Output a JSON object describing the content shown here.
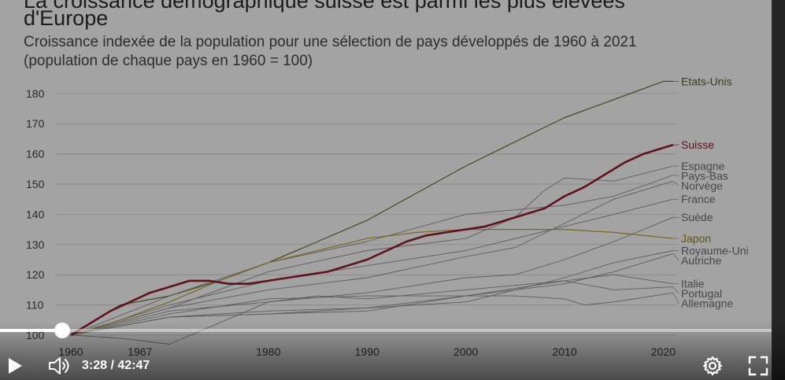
{
  "video": {
    "title_line1": "La croissance démographique suisse est parmi les plus élevées",
    "title_line2": "d'Europe",
    "subtitle_line1": "Croissance indexée de la population pour une sélection de pays développés de 1960 à 2021",
    "subtitle_line2": "(population de chaque pays en 1960 = 100)"
  },
  "player": {
    "current_time": "3:28",
    "separator": "/",
    "duration": "42:47",
    "progress_fraction": 0.081,
    "icons": {
      "play": "play-icon",
      "volume": "volume-icon",
      "settings": "gear-icon",
      "fullscreen": "fullscreen-icon"
    }
  },
  "chart_data": {
    "type": "line",
    "x_ticks": [
      1960,
      1967,
      1980,
      1990,
      2000,
      2010,
      2020
    ],
    "y_ticks": [
      100,
      110,
      120,
      130,
      140,
      150,
      160,
      170,
      180
    ],
    "xlim": [
      1960,
      2021
    ],
    "ylim": [
      100,
      184
    ],
    "grid": true,
    "series": [
      {
        "name": "Etats-Unis",
        "color": "#6b6b2e",
        "highlight": false,
        "label_color": "#5d5d22",
        "x": [
          1960,
          1965,
          1970,
          1975,
          1980,
          1985,
          1990,
          1995,
          2000,
          2005,
          2010,
          2015,
          2020,
          2021
        ],
        "y": [
          100,
          110,
          113,
          118,
          124,
          131,
          138,
          147,
          156,
          164,
          172,
          178,
          184,
          184
        ]
      },
      {
        "name": "Suisse",
        "color": "#8e1b2a",
        "highlight": true,
        "label_color": "#8e1b2a",
        "x": [
          1960,
          1962,
          1964,
          1966,
          1968,
          1970,
          1972,
          1974,
          1976,
          1978,
          1980,
          1982,
          1984,
          1986,
          1988,
          1990,
          1992,
          1994,
          1996,
          1998,
          2000,
          2002,
          2004,
          2006,
          2008,
          2010,
          2012,
          2014,
          2016,
          2018,
          2020,
          2021
        ],
        "y": [
          100,
          104,
          108,
          111,
          114,
          116,
          118,
          118,
          117,
          117,
          118,
          119,
          120,
          121,
          123,
          125,
          128,
          131,
          133,
          134,
          135,
          136,
          138,
          140,
          142,
          146,
          149,
          153,
          157,
          160,
          162,
          163
        ]
      },
      {
        "name": "Espagne",
        "color": "#8a8a8a",
        "highlight": false,
        "label_color": "#6a6a6a",
        "x": [
          1960,
          1970,
          1980,
          1990,
          2000,
          2005,
          2008,
          2010,
          2015,
          2021
        ],
        "y": [
          100,
          109,
          121,
          128,
          132,
          139,
          148,
          152,
          151,
          156
        ]
      },
      {
        "name": "Pays-Bas",
        "color": "#8a8a8a",
        "highlight": false,
        "label_color": "#6a6a6a",
        "x": [
          1960,
          1970,
          1980,
          1990,
          2000,
          2010,
          2015,
          2021
        ],
        "y": [
          100,
          113,
          124,
          131,
          140,
          143,
          146,
          153
        ]
      },
      {
        "name": "Norvège",
        "color": "#8a8a8a",
        "highlight": false,
        "label_color": "#6a6a6a",
        "x": [
          1960,
          1970,
          1980,
          1990,
          2000,
          2005,
          2010,
          2015,
          2021
        ],
        "y": [
          100,
          109,
          115,
          119,
          126,
          129,
          137,
          145,
          151
        ]
      },
      {
        "name": "France",
        "color": "#8a8a8a",
        "highlight": false,
        "label_color": "#6a6a6a",
        "x": [
          1960,
          1970,
          1980,
          1990,
          2000,
          2010,
          2015,
          2021
        ],
        "y": [
          100,
          110,
          118,
          123,
          128,
          136,
          140,
          145
        ]
      },
      {
        "name": "Suède",
        "color": "#8a8a8a",
        "highlight": false,
        "label_color": "#6a6a6a",
        "x": [
          1960,
          1970,
          1980,
          1990,
          2000,
          2005,
          2010,
          2015,
          2021
        ],
        "y": [
          100,
          108,
          111,
          114,
          119,
          120,
          125,
          131,
          139
        ]
      },
      {
        "name": "Japon",
        "color": "#b89a34",
        "highlight": false,
        "label_color": "#9a7a10",
        "x": [
          1960,
          1965,
          1970,
          1975,
          1980,
          1985,
          1990,
          1995,
          2000,
          2005,
          2010,
          2015,
          2021
        ],
        "y": [
          100,
          105,
          111,
          118,
          124,
          128,
          132,
          134,
          135,
          135,
          135,
          134,
          132
        ]
      },
      {
        "name": "Royaume-Uni",
        "color": "#8a8a8a",
        "highlight": false,
        "label_color": "#6a6a6a",
        "x": [
          1960,
          1970,
          1980,
          1990,
          2000,
          2010,
          2015,
          2021
        ],
        "y": [
          100,
          106,
          108,
          109,
          111,
          119,
          124,
          128
        ]
      },
      {
        "name": "Autriche",
        "color": "#8a8a8a",
        "highlight": false,
        "label_color": "#6a6a6a",
        "x": [
          1960,
          1970,
          1980,
          1990,
          2000,
          2010,
          2015,
          2021
        ],
        "y": [
          100,
          106,
          107,
          109,
          113,
          117,
          121,
          127
        ]
      },
      {
        "name": "Italie",
        "color": "#8a8a8a",
        "highlight": false,
        "label_color": "#6a6a6a",
        "x": [
          1960,
          1970,
          1980,
          1990,
          2000,
          2010,
          2015,
          2021
        ],
        "y": [
          100,
          107,
          112,
          113,
          113,
          118,
          120,
          117
        ]
      },
      {
        "name": "Portugal",
        "color": "#8a8a8a",
        "highlight": false,
        "label_color": "#6a6a6a",
        "x": [
          1960,
          1965,
          1970,
          1975,
          1980,
          1985,
          1990,
          2000,
          2010,
          2015,
          2021
        ],
        "y": [
          100,
          99,
          97,
          104,
          111,
          113,
          112,
          115,
          118,
          115,
          116
        ]
      },
      {
        "name": "Allemagne",
        "color": "#8a8a8a",
        "highlight": false,
        "label_color": "#6a6a6a",
        "x": [
          1960,
          1970,
          1980,
          1990,
          2000,
          2005,
          2010,
          2012,
          2015,
          2021
        ],
        "y": [
          100,
          106,
          107,
          108,
          113,
          113,
          112,
          110,
          111,
          114
        ]
      }
    ]
  }
}
